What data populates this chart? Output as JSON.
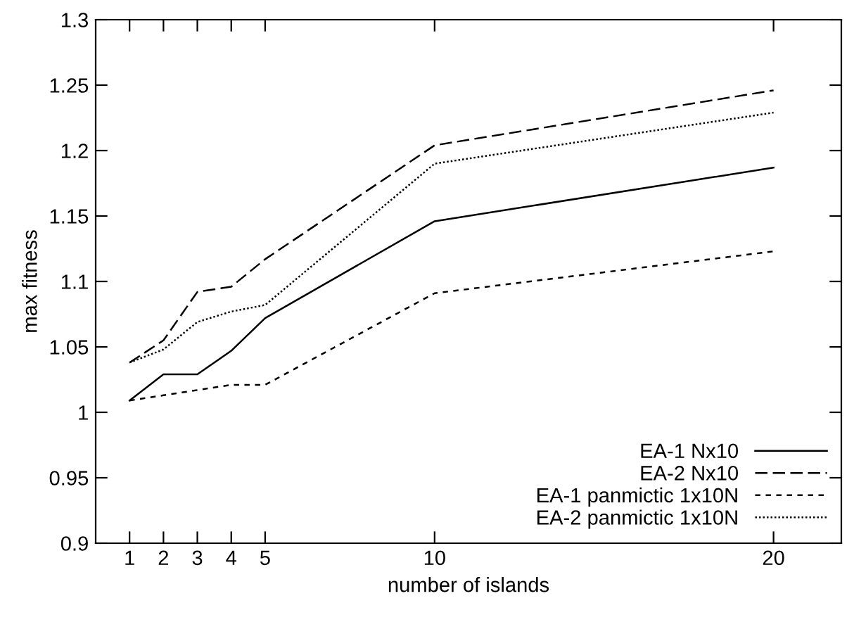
{
  "chart_data": {
    "type": "line",
    "xlabel": "number of islands",
    "ylabel": "max fitness",
    "x": [
      1,
      2,
      3,
      4,
      5,
      10,
      20
    ],
    "series": [
      {
        "name": "EA-1 Nx10",
        "color": "#000000",
        "line_style": "solid",
        "values": [
          1.009,
          1.029,
          1.029,
          1.047,
          1.072,
          1.146,
          1.187
        ]
      },
      {
        "name": "EA-2 Nx10",
        "color": "#000000",
        "line_style": "dashed",
        "values": [
          1.038,
          1.055,
          1.092,
          1.096,
          1.117,
          1.204,
          1.246
        ]
      },
      {
        "name": "EA-1 panmictic 1x10N",
        "color": "#000000",
        "line_style": "shortdash",
        "values": [
          1.009,
          1.013,
          1.017,
          1.021,
          1.021,
          1.091,
          1.123
        ]
      },
      {
        "name": "EA-2 panmictic 1x10N",
        "color": "#000000",
        "line_style": "dotted",
        "values": [
          1.038,
          1.048,
          1.069,
          1.077,
          1.082,
          1.19,
          1.229
        ]
      }
    ],
    "xlim": [
      0,
      22
    ],
    "xticks": [
      1,
      2,
      3,
      4,
      5,
      10,
      20
    ],
    "ylim": [
      0.9,
      1.3
    ],
    "yticks": [
      0.9,
      0.95,
      1,
      1.05,
      1.1,
      1.15,
      1.2,
      1.25,
      1.3
    ],
    "grid": false,
    "legend": "bottom right",
    "marker": "none"
  }
}
